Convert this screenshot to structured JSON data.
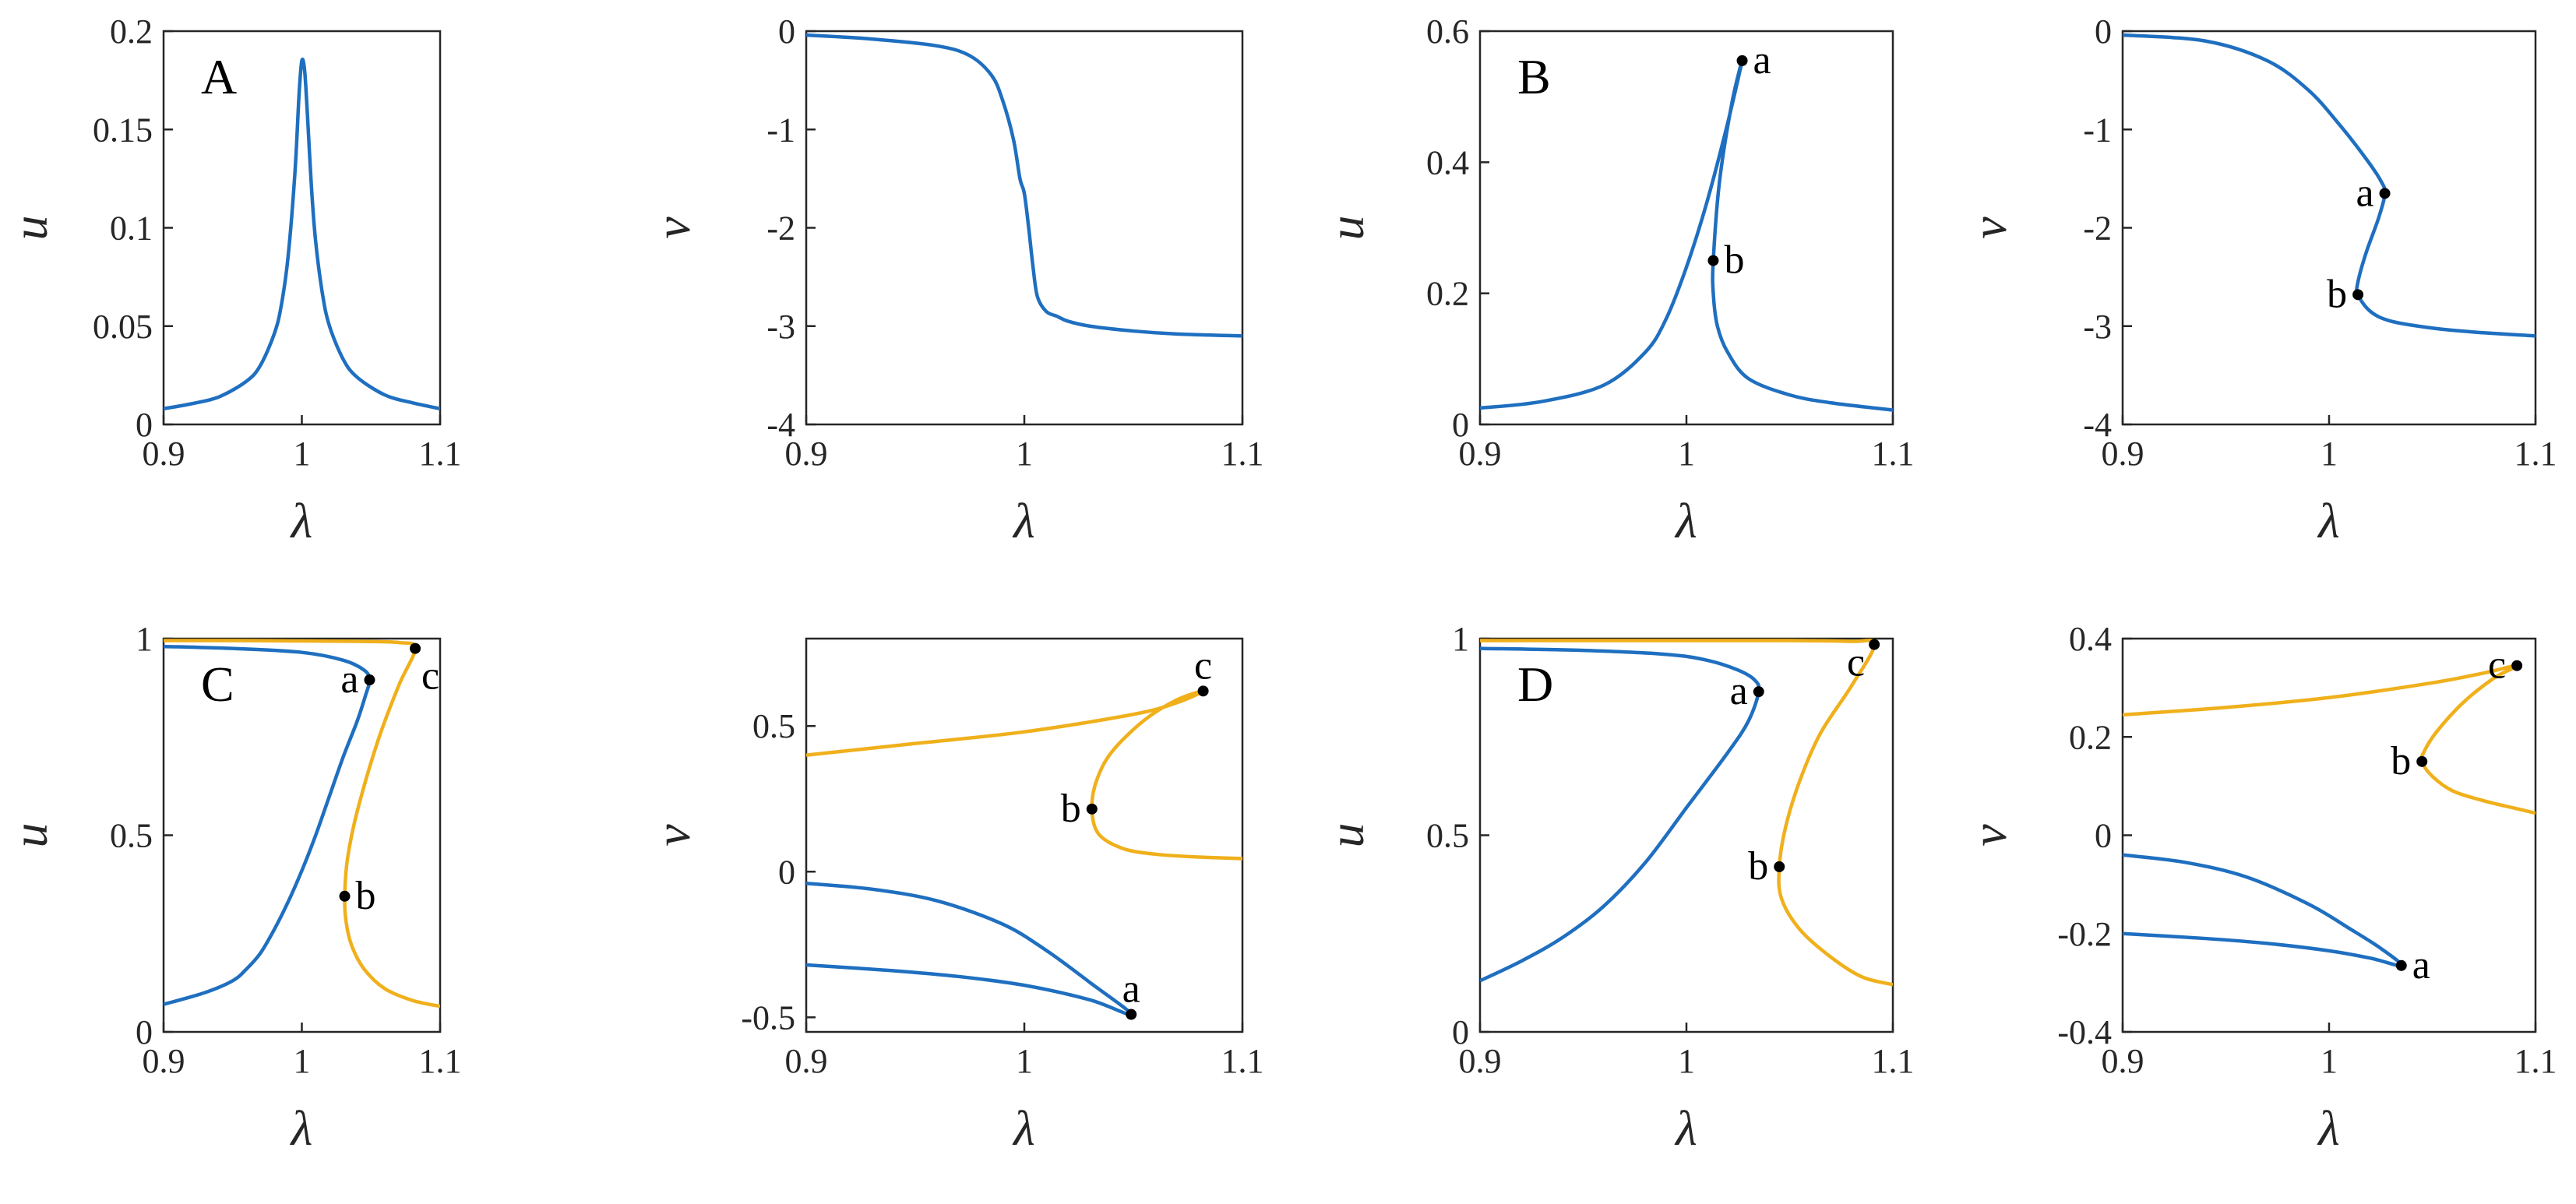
{
  "colors": {
    "blue": "#1f6fc0",
    "orange": "#f0b01c",
    "axis": "#262626",
    "point": "#000000"
  },
  "chart_data": [
    {
      "type": "line",
      "panel": "A",
      "xlabel": "λ",
      "ylabel": "u",
      "xlim": [
        0.9,
        1.1
      ],
      "ylim": [
        0,
        0.2
      ],
      "xticks": [
        "0.9",
        "1",
        "1.1"
      ],
      "yticks": [
        "0",
        "0.05",
        "0.1",
        "0.15",
        "0.2"
      ],
      "series": [
        {
          "color": "blue",
          "x": [
            0.9,
            0.92,
            0.94,
            0.96,
            0.97,
            0.98,
            0.985,
            0.99,
            0.995,
            0.998,
            1.0,
            1.002,
            1.004,
            1.007,
            1.01,
            1.015,
            1.02,
            1.03,
            1.04,
            1.06,
            1.08,
            1.1
          ],
          "y": [
            0.008,
            0.0105,
            0.014,
            0.022,
            0.03,
            0.046,
            0.06,
            0.085,
            0.128,
            0.168,
            0.185,
            0.18,
            0.158,
            0.12,
            0.093,
            0.066,
            0.05,
            0.033,
            0.024,
            0.015,
            0.011,
            0.008
          ]
        }
      ],
      "points": []
    },
    {
      "type": "line",
      "panel": "",
      "xlabel": "λ",
      "ylabel": "v",
      "xlim": [
        0.9,
        1.1
      ],
      "ylim": [
        -4,
        0
      ],
      "xticks": [
        "0.9",
        "1",
        "1.1"
      ],
      "yticks": [
        "-4",
        "-3",
        "-2",
        "-1",
        "0"
      ],
      "series": [
        {
          "color": "blue",
          "x": [
            0.9,
            0.93,
            0.96,
            0.975,
            0.985,
            0.99,
            0.995,
            0.998,
            1.0,
            1.002,
            1.004,
            1.006,
            1.01,
            1.015,
            1.02,
            1.03,
            1.05,
            1.07,
            1.1
          ],
          "y": [
            -0.04,
            -0.08,
            -0.15,
            -0.25,
            -0.45,
            -0.7,
            -1.1,
            -1.5,
            -1.65,
            -2.0,
            -2.4,
            -2.7,
            -2.85,
            -2.9,
            -2.95,
            -3.0,
            -3.05,
            -3.08,
            -3.1
          ]
        }
      ],
      "points": []
    },
    {
      "type": "line",
      "panel": "B",
      "xlabel": "λ",
      "ylabel": "u",
      "xlim": [
        0.9,
        1.1
      ],
      "ylim": [
        0,
        0.6
      ],
      "xticks": [
        "0.9",
        "1",
        "1.1"
      ],
      "yticks": [
        "0",
        "0.2",
        "0.4",
        "0.6"
      ],
      "series": [
        {
          "color": "blue",
          "x": [
            0.9,
            0.93,
            0.96,
            0.98,
            0.99,
            1.0,
            1.01,
            1.02,
            1.027,
            1.022,
            1.016,
            1.013,
            1.013,
            1.015,
            1.02,
            1.03,
            1.05,
            1.07,
            1.1
          ],
          "y": [
            0.025,
            0.035,
            0.06,
            0.11,
            0.16,
            0.24,
            0.34,
            0.46,
            0.555,
            0.49,
            0.37,
            0.25,
            0.2,
            0.15,
            0.11,
            0.07,
            0.045,
            0.033,
            0.022
          ]
        }
      ],
      "points": [
        {
          "x": 1.027,
          "y": 0.555,
          "label": "a",
          "pos": "right"
        },
        {
          "x": 1.013,
          "y": 0.25,
          "label": "b",
          "pos": "right"
        }
      ]
    },
    {
      "type": "line",
      "panel": "",
      "xlabel": "λ",
      "ylabel": "v",
      "xlim": [
        0.9,
        1.1
      ],
      "ylim": [
        -4,
        0
      ],
      "xticks": [
        "0.9",
        "1",
        "1.1"
      ],
      "yticks": [
        "-4",
        "-3",
        "-2",
        "-1",
        "0"
      ],
      "series": [
        {
          "color": "blue",
          "x": [
            0.9,
            0.94,
            0.97,
            0.99,
            1.005,
            1.018,
            1.025,
            1.027,
            1.024,
            1.018,
            1.014,
            1.014,
            1.02,
            1.03,
            1.05,
            1.07,
            1.1
          ],
          "y": [
            -0.04,
            -0.1,
            -0.3,
            -0.6,
            -0.95,
            -1.3,
            -1.52,
            -1.65,
            -1.9,
            -2.25,
            -2.55,
            -2.68,
            -2.85,
            -2.95,
            -3.02,
            -3.06,
            -3.1
          ]
        }
      ],
      "points": [
        {
          "x": 1.027,
          "y": -1.65,
          "label": "a",
          "pos": "left"
        },
        {
          "x": 1.014,
          "y": -2.68,
          "label": "b",
          "pos": "left"
        }
      ]
    },
    {
      "type": "line",
      "panel": "C",
      "xlabel": "λ",
      "ylabel": "u",
      "xlim": [
        0.9,
        1.1
      ],
      "ylim": [
        0,
        1
      ],
      "xticks": [
        "0.9",
        "1",
        "1.1"
      ],
      "yticks": [
        "0",
        "0.5",
        "1"
      ],
      "series": [
        {
          "color": "blue",
          "x": [
            0.9,
            0.95,
            1.0,
            1.03,
            1.045,
            1.049,
            1.046,
            1.04,
            1.03,
            1.02,
            1.01,
            1.0,
            0.99,
            0.98,
            0.97,
            0.96,
            0.95,
            0.93,
            0.9
          ],
          "y": [
            0.98,
            0.975,
            0.965,
            0.945,
            0.92,
            0.895,
            0.855,
            0.79,
            0.7,
            0.6,
            0.5,
            0.41,
            0.33,
            0.26,
            0.2,
            0.16,
            0.13,
            0.1,
            0.07
          ]
        },
        {
          "color": "orange",
          "x": [
            0.9,
            0.95,
            1.0,
            1.04,
            1.07,
            1.082,
            1.07,
            1.055,
            1.04,
            1.033,
            1.031,
            1.032,
            1.036,
            1.045,
            1.06,
            1.08,
            1.1
          ],
          "y": [
            0.995,
            0.995,
            0.994,
            0.993,
            0.99,
            0.975,
            0.88,
            0.74,
            0.56,
            0.44,
            0.345,
            0.28,
            0.22,
            0.16,
            0.11,
            0.08,
            0.065
          ]
        }
      ],
      "points": [
        {
          "x": 1.049,
          "y": 0.895,
          "label": "a",
          "pos": "left"
        },
        {
          "x": 1.031,
          "y": 0.345,
          "label": "b",
          "pos": "right"
        },
        {
          "x": 1.082,
          "y": 0.975,
          "label": "c",
          "pos": "right-below"
        }
      ]
    },
    {
      "type": "line",
      "panel": "",
      "xlabel": "λ",
      "ylabel": "v",
      "xlim": [
        0.9,
        1.1
      ],
      "ylim": [
        -0.55,
        0.8
      ],
      "xticks": [
        "0.9",
        "1",
        "1.1"
      ],
      "yticks": [
        "-0.5",
        "0",
        "0.5"
      ],
      "series": [
        {
          "color": "blue",
          "x": [
            0.9,
            0.93,
            0.96,
            0.99,
            1.01,
            1.03,
            1.049,
            1.03,
            1.0,
            0.97,
            0.94,
            0.9
          ],
          "y": [
            -0.04,
            -0.06,
            -0.1,
            -0.18,
            -0.27,
            -0.38,
            -0.49,
            -0.44,
            -0.39,
            -0.36,
            -0.34,
            -0.32
          ]
        },
        {
          "color": "orange",
          "x": [
            0.9,
            0.95,
            1.0,
            1.05,
            1.07,
            1.082,
            1.07,
            1.055,
            1.04,
            1.033,
            1.031,
            1.034,
            1.045,
            1.06,
            1.08,
            1.1
          ],
          "y": [
            0.4,
            0.44,
            0.48,
            0.54,
            0.58,
            0.62,
            0.59,
            0.52,
            0.41,
            0.31,
            0.215,
            0.13,
            0.08,
            0.06,
            0.05,
            0.045
          ]
        }
      ],
      "points": [
        {
          "x": 1.049,
          "y": -0.49,
          "label": "a",
          "pos": "above"
        },
        {
          "x": 1.031,
          "y": 0.215,
          "label": "b",
          "pos": "left"
        },
        {
          "x": 1.082,
          "y": 0.62,
          "label": "c",
          "pos": "above"
        }
      ]
    },
    {
      "type": "line",
      "panel": "D",
      "xlabel": "λ",
      "ylabel": "u",
      "xlim": [
        0.9,
        1.1
      ],
      "ylim": [
        0,
        1
      ],
      "xticks": [
        "0.9",
        "1",
        "1.1"
      ],
      "yticks": [
        "0",
        "0.5",
        "1"
      ],
      "series": [
        {
          "color": "blue",
          "x": [
            0.9,
            0.95,
            0.99,
            1.01,
            1.025,
            1.033,
            1.035,
            1.03,
            1.02,
            1.0,
            0.98,
            0.96,
            0.94,
            0.92,
            0.9
          ],
          "y": [
            0.975,
            0.97,
            0.96,
            0.945,
            0.92,
            0.895,
            0.865,
            0.79,
            0.71,
            0.57,
            0.43,
            0.32,
            0.24,
            0.18,
            0.13
          ]
        },
        {
          "color": "orange",
          "x": [
            0.9,
            0.95,
            1.0,
            1.05,
            1.08,
            1.091,
            1.08,
            1.065,
            1.055,
            1.048,
            1.045,
            1.046,
            1.055,
            1.07,
            1.085,
            1.1
          ],
          "y": [
            0.995,
            0.995,
            0.995,
            0.995,
            0.993,
            0.985,
            0.88,
            0.76,
            0.64,
            0.52,
            0.42,
            0.34,
            0.26,
            0.19,
            0.14,
            0.12
          ]
        }
      ],
      "points": [
        {
          "x": 1.035,
          "y": 0.865,
          "label": "a",
          "pos": "left"
        },
        {
          "x": 1.045,
          "y": 0.42,
          "label": "b",
          "pos": "left"
        },
        {
          "x": 1.091,
          "y": 0.985,
          "label": "c",
          "pos": "left-below"
        }
      ]
    },
    {
      "type": "line",
      "panel": "",
      "xlabel": "λ",
      "ylabel": "v",
      "xlim": [
        0.9,
        1.1
      ],
      "ylim": [
        -0.4,
        0.4
      ],
      "xticks": [
        "0.9",
        "1",
        "1.1"
      ],
      "yticks": [
        "-0.4",
        "-0.2",
        "0",
        "0.2",
        "0.4"
      ],
      "series": [
        {
          "color": "blue",
          "x": [
            0.9,
            0.93,
            0.96,
            0.99,
            1.01,
            1.025,
            1.035,
            1.02,
            1.0,
            0.97,
            0.94,
            0.9
          ],
          "y": [
            -0.04,
            -0.055,
            -0.085,
            -0.14,
            -0.19,
            -0.23,
            -0.265,
            -0.25,
            -0.235,
            -0.22,
            -0.21,
            -0.2
          ]
        },
        {
          "color": "orange",
          "x": [
            0.9,
            0.95,
            1.0,
            1.05,
            1.075,
            1.091,
            1.08,
            1.065,
            1.052,
            1.046,
            1.045,
            1.05,
            1.06,
            1.075,
            1.09,
            1.1
          ],
          "y": [
            0.245,
            0.26,
            0.28,
            0.31,
            0.33,
            0.345,
            0.32,
            0.27,
            0.21,
            0.17,
            0.15,
            0.12,
            0.09,
            0.07,
            0.055,
            0.045
          ]
        }
      ],
      "points": [
        {
          "x": 1.035,
          "y": -0.265,
          "label": "a",
          "pos": "right"
        },
        {
          "x": 1.045,
          "y": 0.15,
          "label": "b",
          "pos": "left"
        },
        {
          "x": 1.091,
          "y": 0.345,
          "label": "c",
          "pos": "left"
        }
      ]
    }
  ]
}
